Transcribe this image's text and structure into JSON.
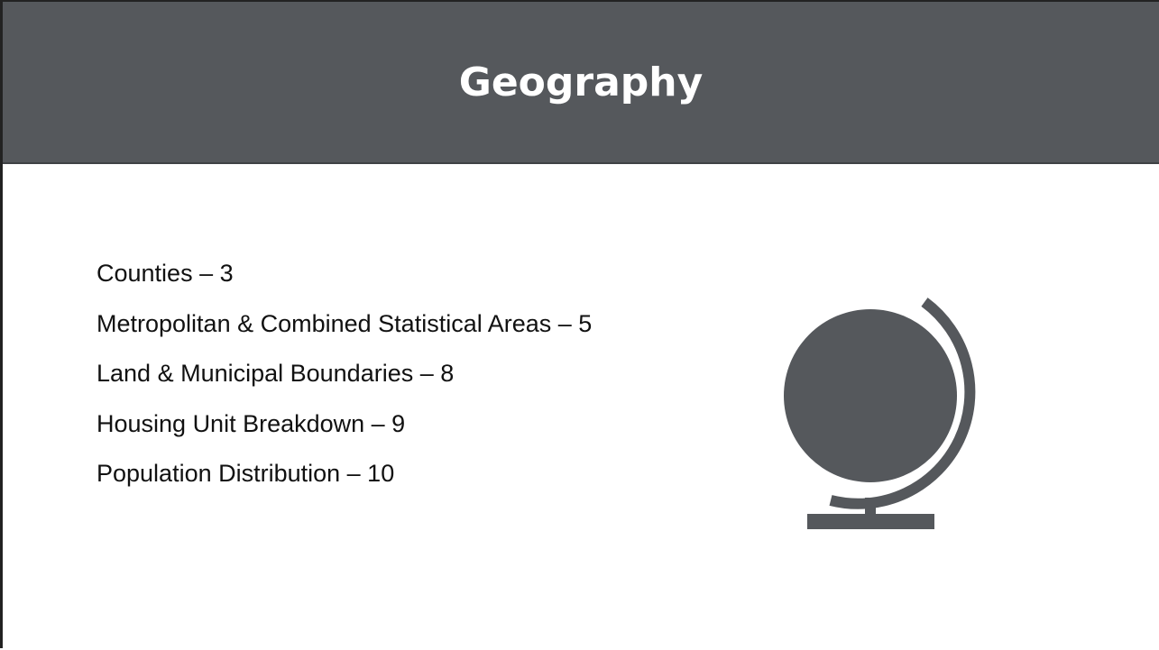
{
  "header": {
    "title": "Geography"
  },
  "list": {
    "items": [
      "Counties – 3",
      "Metropolitan & Combined Statistical Areas – 5",
      "Land & Municipal Boundaries – 8",
      "Housing Unit Breakdown – 9",
      "Population Distribution – 10"
    ]
  }
}
